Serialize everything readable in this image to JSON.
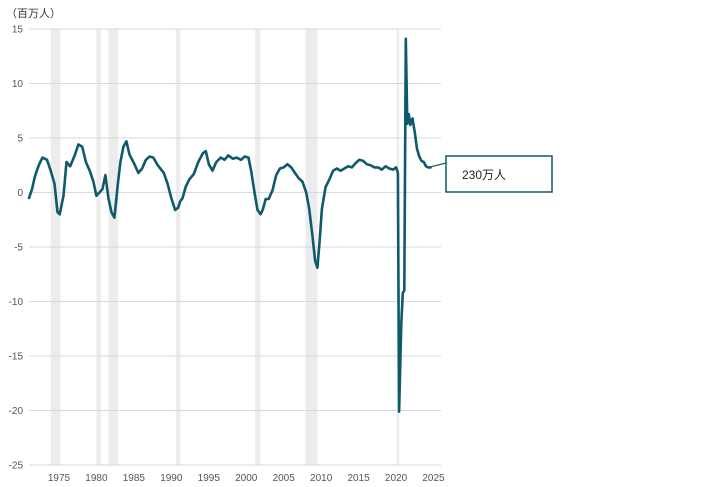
{
  "chart_data": {
    "type": "line",
    "unit_label": "（百万人）",
    "x_ticks": [
      "1975",
      "1980",
      "1985",
      "1990",
      "1995",
      "2000",
      "2005",
      "2010",
      "2015",
      "2020",
      "2025"
    ],
    "y_ticks": [
      "15",
      "10",
      "5",
      "0",
      "-5",
      "-10",
      "-15",
      "-20",
      "-25"
    ],
    "xlim": [
      1971,
      2026
    ],
    "ylim": [
      -25,
      15
    ],
    "grid": "horizontal",
    "recession_periods": [
      [
        1973.9,
        1975.2
      ],
      [
        1980.0,
        1980.6
      ],
      [
        1981.6,
        1982.9
      ],
      [
        1990.6,
        1991.2
      ],
      [
        2001.2,
        2001.9
      ],
      [
        2007.9,
        2009.5
      ],
      [
        2020.1,
        2020.4
      ]
    ],
    "series": [
      {
        "color": "#0f5a6a",
        "x": [
          1971.0,
          1971.4,
          1971.8,
          1972.3,
          1972.8,
          1973.4,
          1973.9,
          1974.4,
          1974.8,
          1975.1,
          1975.6,
          1976.0,
          1976.5,
          1977.1,
          1977.6,
          1978.1,
          1978.6,
          1979.1,
          1979.6,
          1980.0,
          1980.4,
          1980.8,
          1981.2,
          1981.6,
          1982.0,
          1982.4,
          1982.9,
          1983.2,
          1983.6,
          1984.0,
          1984.4,
          1985.0,
          1985.6,
          1986.1,
          1986.6,
          1987.1,
          1987.6,
          1988.2,
          1989.0,
          1989.5,
          1990.0,
          1990.5,
          1990.9,
          1991.2,
          1991.5,
          1991.9,
          1992.4,
          1993.0,
          1993.6,
          1994.2,
          1994.6,
          1995.0,
          1995.5,
          1996.0,
          1996.6,
          1997.1,
          1997.6,
          1998.2,
          1998.7,
          1999.3,
          1999.8,
          2000.3,
          2000.7,
          2001.1,
          2001.5,
          2001.9,
          2002.2,
          2002.6,
          2003.0,
          2003.5,
          2004.0,
          2004.5,
          2005.0,
          2005.5,
          2006.0,
          2006.5,
          2007.0,
          2007.5,
          2008.0,
          2008.4,
          2008.8,
          2009.2,
          2009.5,
          2009.8,
          2010.1,
          2010.6,
          2011.1,
          2011.6,
          2012.1,
          2012.6,
          2013.1,
          2013.6,
          2014.1,
          2014.6,
          2015.1,
          2015.6,
          2016.1,
          2016.6,
          2017.1,
          2017.6,
          2018.1,
          2018.6,
          2019.1,
          2019.6,
          2020.0,
          2020.25,
          2020.4,
          2020.7,
          2020.9,
          2021.1,
          2021.3,
          2021.5,
          2021.7,
          2021.9,
          2022.2,
          2022.5,
          2022.8,
          2023.1,
          2023.4,
          2023.7,
          2024.0,
          2024.3,
          2024.6
        ],
        "y": [
          -0.5,
          0.3,
          1.5,
          2.5,
          3.2,
          3.0,
          2.0,
          0.8,
          -1.8,
          -2.0,
          -0.3,
          2.8,
          2.4,
          3.4,
          4.4,
          4.2,
          2.8,
          2.0,
          1.0,
          -0.3,
          0.0,
          0.3,
          1.6,
          -0.5,
          -1.8,
          -2.3,
          1.0,
          2.8,
          4.2,
          4.7,
          3.5,
          2.7,
          1.8,
          2.2,
          3.0,
          3.3,
          3.2,
          2.5,
          1.8,
          0.8,
          -0.5,
          -1.6,
          -1.4,
          -0.8,
          -0.5,
          0.5,
          1.2,
          1.7,
          2.8,
          3.6,
          3.8,
          2.6,
          2.0,
          2.8,
          3.2,
          3.0,
          3.4,
          3.1,
          3.2,
          3.0,
          3.3,
          3.2,
          1.8,
          0.0,
          -1.6,
          -2.0,
          -1.6,
          -0.6,
          -0.6,
          0.2,
          1.6,
          2.2,
          2.3,
          2.6,
          2.3,
          1.8,
          1.3,
          1.0,
          0.0,
          -1.5,
          -3.8,
          -6.3,
          -6.9,
          -4.5,
          -1.5,
          0.5,
          1.2,
          2.0,
          2.2,
          2.0,
          2.2,
          2.4,
          2.3,
          2.7,
          3.0,
          2.9,
          2.6,
          2.5,
          2.3,
          2.3,
          2.1,
          2.4,
          2.2,
          2.1,
          2.3,
          1.8,
          -20.1,
          -12.0,
          -9.2,
          -9.0,
          14.1,
          6.3,
          7.2,
          6.2,
          6.8,
          5.5,
          4.0,
          3.3,
          2.9,
          2.8,
          2.4,
          2.3,
          2.3
        ]
      }
    ],
    "annotation": {
      "text": "230万人",
      "x": 2024.3,
      "y": 2.3
    }
  }
}
